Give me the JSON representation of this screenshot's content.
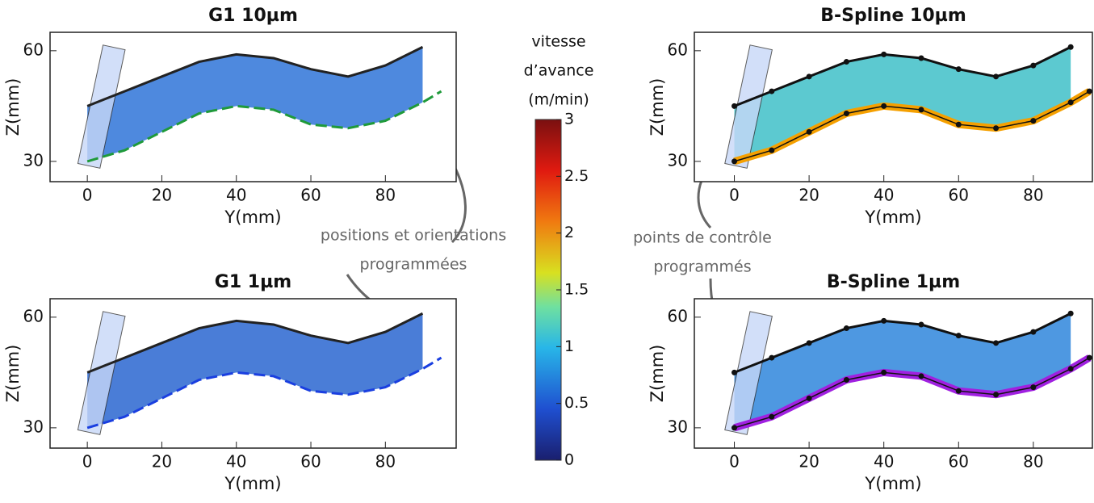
{
  "chart_data": [
    {
      "type": "line",
      "title": "G1 10µm",
      "x_label": "Y(mm)",
      "y_label": "Z(mm)",
      "xlim": [
        -10,
        99
      ],
      "ylim": [
        24.5,
        65
      ],
      "xticks": [
        0,
        20,
        40,
        60,
        80
      ],
      "yticks": [
        30,
        60
      ],
      "fill": "#2f74d8",
      "markers": false,
      "x": [
        0,
        10,
        20,
        30,
        40,
        50,
        60,
        70,
        80,
        90,
        95
      ],
      "series": [
        {
          "color": "#222222",
          "values": [
            45,
            49,
            53,
            57,
            59,
            58,
            55,
            53,
            56,
            61,
            null
          ]
        },
        {
          "color": "#1f9a3a",
          "dashed": true,
          "values": [
            30,
            33,
            38,
            43,
            45,
            44,
            40,
            39,
            41,
            46,
            49
          ]
        }
      ]
    },
    {
      "type": "line",
      "title": "B-Spline 10µm",
      "x_label": "Y(mm)",
      "y_label": "Z(mm)",
      "xlim": [
        -10.7,
        95.8
      ],
      "ylim": [
        24.5,
        65
      ],
      "xticks": [
        0,
        20,
        40,
        60,
        80
      ],
      "yticks": [
        30,
        60
      ],
      "fill": "#3fbfc8",
      "markers": true,
      "x": [
        0,
        10,
        20,
        30,
        40,
        50,
        60,
        70,
        80,
        90,
        95
      ],
      "series": [
        {
          "color": "#111111",
          "values": [
            45,
            49,
            53,
            57,
            59,
            58,
            55,
            53,
            56,
            61,
            null
          ]
        },
        {
          "color": "#f5a000",
          "dashed": false,
          "values": [
            30,
            33,
            38,
            43,
            45,
            44,
            40,
            39,
            41,
            46,
            49
          ]
        }
      ]
    },
    {
      "type": "line",
      "title": "G1 1µm",
      "x_label": "Y(mm)",
      "y_label": "Z(mm)",
      "xlim": [
        -10,
        99
      ],
      "ylim": [
        24.5,
        65
      ],
      "xticks": [
        0,
        20,
        40,
        60,
        80
      ],
      "yticks": [
        30,
        60
      ],
      "fill": "#2a66d0",
      "markers": false,
      "x": [
        0,
        10,
        20,
        30,
        40,
        50,
        60,
        70,
        80,
        90,
        95
      ],
      "series": [
        {
          "color": "#222222",
          "values": [
            45,
            49,
            53,
            57,
            59,
            58,
            55,
            53,
            56,
            61,
            null
          ]
        },
        {
          "color": "#1a3fe0",
          "dashed": true,
          "values": [
            30,
            33,
            38,
            43,
            45,
            44,
            40,
            39,
            41,
            46,
            49
          ]
        }
      ]
    },
    {
      "type": "line",
      "title": "B-Spline 1µm",
      "x_label": "Y(mm)",
      "y_label": "Z(mm)",
      "xlim": [
        -10.7,
        95.8
      ],
      "ylim": [
        24.5,
        65
      ],
      "xticks": [
        0,
        20,
        40,
        60,
        80
      ],
      "yticks": [
        30,
        60
      ],
      "fill": "#2f86dc",
      "markers": true,
      "x": [
        0,
        10,
        20,
        30,
        40,
        50,
        60,
        70,
        80,
        90,
        95
      ],
      "series": [
        {
          "color": "#111111",
          "values": [
            45,
            49,
            53,
            57,
            59,
            58,
            55,
            53,
            56,
            61,
            null
          ]
        },
        {
          "color": "#a020e0",
          "dashed": false,
          "values": [
            30,
            33,
            38,
            43,
            45,
            44,
            40,
            39,
            41,
            46,
            49
          ]
        }
      ]
    }
  ],
  "colorbar": {
    "title_lines": [
      "vitesse",
      "d’avance",
      "(m/min)"
    ],
    "lim": [
      0,
      3
    ],
    "ticks": [
      0,
      0.5,
      1,
      1.5,
      2,
      2.5,
      3
    ]
  },
  "annotations": [
    {
      "lines": [
        "positions et orientations",
        "programmées"
      ]
    },
    {
      "lines": [
        "points de contrôle",
        "programmés"
      ]
    }
  ]
}
